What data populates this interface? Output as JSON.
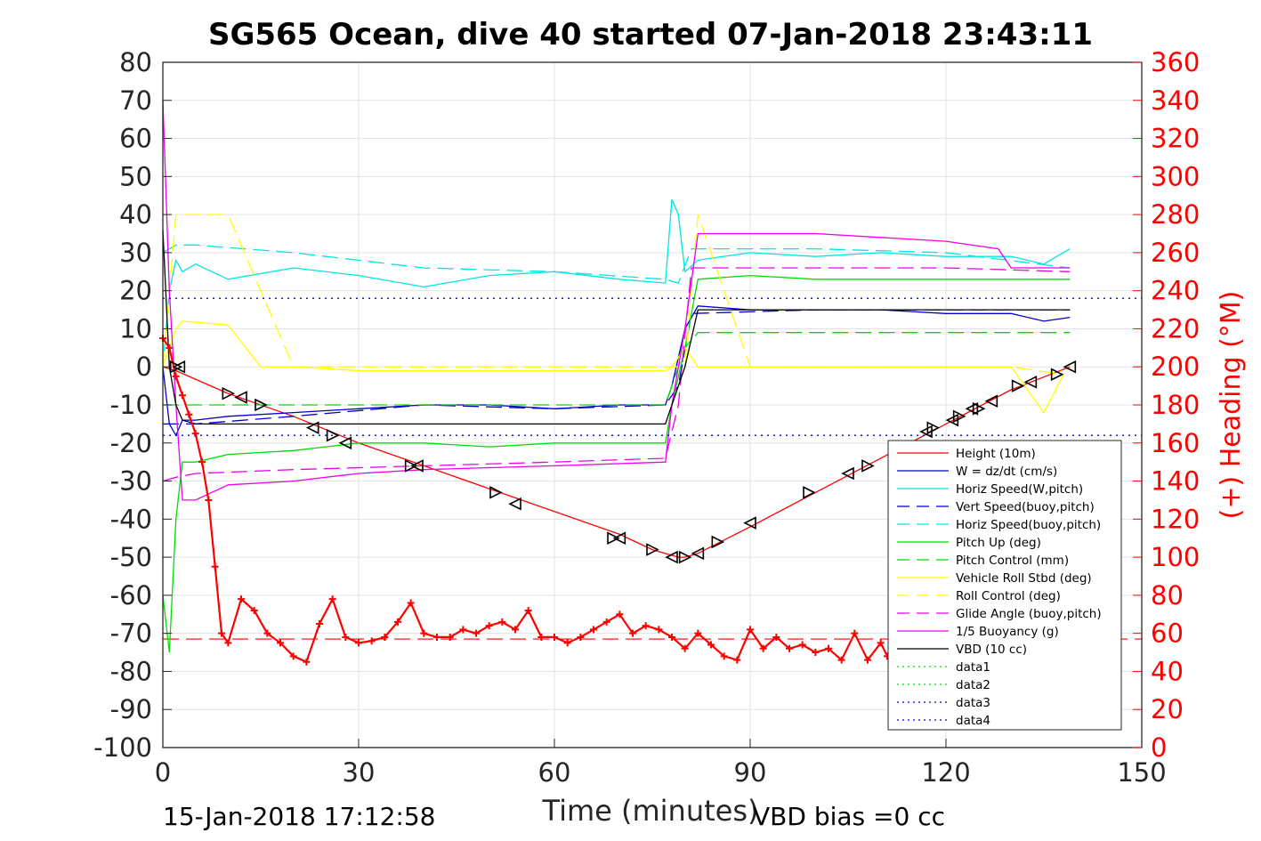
{
  "chart_data": {
    "type": "line",
    "title": "SG565 Ocean, dive 40 started 07-Jan-2018 23:43:11",
    "xlabel": "Time (minutes)",
    "ylabel": "",
    "ylabel_right": "(+) Heading (°M)",
    "xlim": [
      0,
      150
    ],
    "ylim": [
      -100,
      80
    ],
    "ylim_right": [
      0,
      360
    ],
    "x_ticks": [
      "0",
      "30",
      "60",
      "90",
      "120",
      "150"
    ],
    "y_ticks": [
      "80",
      "70",
      "60",
      "50",
      "40",
      "30",
      "20",
      "10",
      "0",
      "-10",
      "-20",
      "-30",
      "-40",
      "-50",
      "-60",
      "-70",
      "-80",
      "-90",
      "-100"
    ],
    "y_ticks_right": [
      "360",
      "340",
      "320",
      "300",
      "280",
      "260",
      "240",
      "220",
      "200",
      "180",
      "160",
      "140",
      "120",
      "100",
      "80",
      "60",
      "40",
      "20",
      "0"
    ],
    "grid": true,
    "legend_position": "bottom-right",
    "footer_left": "15-Jan-2018 17:12:58",
    "footer_right": "VBD bias =0 cc",
    "series": [
      {
        "name": "Height (10m)",
        "color": "#ff0000",
        "style": "solid",
        "x": [
          0,
          2,
          10,
          20,
          30,
          40,
          50,
          60,
          70,
          75,
          79,
          80,
          82,
          90,
          100,
          110,
          120,
          130,
          139
        ],
        "values": [
          0,
          -1,
          -7,
          -13,
          -20,
          -26,
          -32,
          -38,
          -44,
          -48,
          -50,
          -50,
          -49,
          -42,
          -33,
          -24,
          -15,
          -6,
          0
        ]
      },
      {
        "name": "W = dz/dt (cm/s)",
        "color": "#0000cc",
        "style": "solid",
        "x": [
          0,
          1,
          2,
          3,
          5,
          10,
          20,
          30,
          40,
          50,
          60,
          70,
          77,
          78,
          80,
          82,
          90,
          100,
          110,
          120,
          130,
          135,
          139
        ],
        "values": [
          0,
          -15,
          -18,
          -14,
          -14,
          -13,
          -12,
          -11,
          -10,
          -10,
          -11,
          -10,
          -10,
          -5,
          10,
          16,
          15,
          15,
          15,
          14,
          14,
          12,
          13
        ]
      },
      {
        "name": "Horiz Speed(W,pitch)",
        "color": "#00e5e5",
        "style": "solid",
        "x": [
          0,
          1,
          2,
          3,
          5,
          10,
          20,
          30,
          40,
          50,
          60,
          70,
          77,
          78,
          79,
          80,
          82,
          90,
          100,
          110,
          120,
          130,
          135,
          139
        ],
        "values": [
          0,
          20,
          28,
          25,
          27,
          23,
          26,
          24,
          21,
          24,
          25,
          23,
          22,
          44,
          40,
          25,
          28,
          30,
          29,
          30,
          29,
          29,
          27,
          31
        ]
      },
      {
        "name": "Vert Speed(buoy,pitch)",
        "color": "#0000cc",
        "style": "dashed",
        "x": [
          0,
          2,
          5,
          20,
          40,
          60,
          77,
          79,
          81,
          100,
          120,
          139
        ],
        "values": [
          -15,
          -15,
          -15,
          -13,
          -10,
          -11,
          -10,
          -5,
          14,
          15,
          15,
          15
        ]
      },
      {
        "name": "Horiz Speed(buoy,pitch)",
        "color": "#00e5e5",
        "style": "dashed",
        "x": [
          0,
          2,
          5,
          20,
          40,
          60,
          77,
          79,
          81,
          100,
          120,
          139
        ],
        "values": [
          30,
          32,
          32,
          30,
          26,
          25,
          23,
          22,
          31,
          31,
          30,
          26
        ]
      },
      {
        "name": "Pitch Up (deg)",
        "color": "#00dd00",
        "style": "solid",
        "x": [
          0,
          1,
          2,
          3,
          5,
          10,
          20,
          30,
          40,
          50,
          60,
          70,
          77,
          78,
          80,
          82,
          90,
          100,
          110,
          120,
          130,
          139
        ],
        "values": [
          -60,
          -75,
          -40,
          -25,
          -25,
          -23,
          -22,
          -20,
          -20,
          -21,
          -20,
          -20,
          -20,
          -10,
          5,
          23,
          24,
          23,
          23,
          23,
          23,
          23
        ]
      },
      {
        "name": "Pitch Control (mm)",
        "color": "#00dd00",
        "style": "dashed",
        "x": [
          0,
          2,
          5,
          77,
          78,
          80,
          82,
          139
        ],
        "values": [
          -10,
          -10,
          -10,
          -10,
          -5,
          5,
          9,
          9
        ]
      },
      {
        "name": "Vehicle Roll Stbd (deg)",
        "color": "#ffff00",
        "style": "solid",
        "x": [
          0,
          2,
          3,
          10,
          15,
          20,
          30,
          40,
          50,
          60,
          70,
          77,
          78,
          80,
          82,
          90,
          100,
          110,
          120,
          130,
          135,
          138
        ],
        "values": [
          0,
          10,
          12,
          11,
          0,
          0,
          -1,
          -1,
          -1,
          -1,
          -1,
          -1,
          0,
          5,
          0,
          0,
          0,
          0,
          0,
          0,
          -12,
          -2
        ]
      },
      {
        "name": "Roll Control (deg)",
        "color": "#ffff00",
        "style": "dashed",
        "x": [
          0,
          2,
          3,
          10,
          20,
          30,
          40,
          50,
          60,
          70,
          77,
          80,
          82,
          90,
          100,
          110,
          120,
          130,
          138
        ],
        "values": [
          0,
          40,
          40,
          40,
          0,
          0,
          0,
          0,
          0,
          0,
          0,
          0,
          40,
          0,
          0,
          0,
          0,
          0,
          -2
        ]
      },
      {
        "name": "Glide Angle (buoy,pitch)",
        "color": "#ee00ee",
        "style": "dashed",
        "x": [
          0,
          2,
          5,
          20,
          40,
          60,
          77,
          79,
          81,
          100,
          120,
          139
        ],
        "values": [
          -30,
          -29,
          -28,
          -27,
          -26,
          -25,
          -24,
          -10,
          26,
          26,
          26,
          25
        ]
      },
      {
        "name": "1/5 Buoyancy (g)",
        "color": "#ee00ee",
        "style": "solid",
        "x": [
          0,
          1,
          2,
          3,
          5,
          10,
          20,
          30,
          40,
          60,
          77,
          78,
          80,
          82,
          90,
          100,
          110,
          120,
          128,
          130,
          139
        ],
        "values": [
          70,
          20,
          -10,
          -35,
          -35,
          -31,
          -30,
          -28,
          -27,
          -26,
          -25,
          -10,
          10,
          35,
          35,
          35,
          34,
          33,
          31,
          26,
          26
        ]
      },
      {
        "name": "VBD (10 cc)",
        "color": "#000000",
        "style": "solid",
        "x": [
          0,
          1,
          2,
          3,
          5,
          77,
          78,
          80,
          82,
          139
        ],
        "values": [
          36,
          0,
          -10,
          -14,
          -15,
          -15,
          -10,
          0,
          15,
          15
        ]
      },
      {
        "name": "data1",
        "color": "#00dd00",
        "style": "dotted",
        "x": [],
        "values": []
      },
      {
        "name": "data2",
        "color": "#00dd00",
        "style": "dotted",
        "x": [],
        "values": []
      },
      {
        "name": "data3",
        "color": "#0000cc",
        "style": "dotted",
        "x": [
          0,
          150
        ],
        "values": [
          18,
          18
        ]
      },
      {
        "name": "data4",
        "color": "#0000cc",
        "style": "dotted",
        "x": [
          0,
          150
        ],
        "values": [
          -18,
          -18
        ]
      }
    ],
    "reference_lines": [
      {
        "axis": "y",
        "value": -71.5,
        "color": "#ff0000",
        "style": "dashed"
      }
    ],
    "heading_series": {
      "axis": "right",
      "color": "#ff0000",
      "marker": "+",
      "x": [
        0,
        1,
        2,
        3,
        4,
        5,
        6,
        7,
        8,
        9,
        10,
        12,
        14,
        16,
        18,
        20,
        22,
        24,
        26,
        28,
        30,
        32,
        34,
        36,
        38,
        40,
        42,
        44,
        46,
        48,
        50,
        52,
        54,
        56,
        58,
        60,
        62,
        64,
        66,
        68,
        70,
        72,
        74,
        76,
        78,
        80,
        82,
        84,
        86,
        88,
        90,
        92,
        94,
        96,
        98,
        100,
        102,
        104,
        106,
        108,
        110,
        111
      ],
      "values": [
        215,
        210,
        195,
        185,
        175,
        165,
        150,
        130,
        95,
        60,
        55,
        78,
        72,
        60,
        55,
        48,
        45,
        65,
        78,
        58,
        55,
        56,
        58,
        66,
        76,
        60,
        58,
        58,
        62,
        60,
        64,
        66,
        62,
        72,
        58,
        58,
        55,
        58,
        62,
        66,
        70,
        60,
        64,
        62,
        58,
        52,
        60,
        54,
        48,
        46,
        62,
        52,
        58,
        52,
        54,
        50,
        52,
        46,
        60,
        46,
        55,
        48
      ]
    },
    "markers": {
      "color": "#000000",
      "x": [
        2,
        2.5,
        10,
        12,
        15,
        23,
        26,
        28,
        38,
        39,
        51,
        54,
        69,
        70,
        75,
        78,
        80,
        82,
        85,
        90,
        99,
        105,
        108,
        117,
        118,
        121,
        122,
        124,
        125,
        127,
        131,
        133,
        137,
        139
      ],
      "values": [
        0,
        0,
        -7,
        -8,
        -10,
        -16,
        -18,
        -20,
        -26,
        -26,
        -33,
        -36,
        -45,
        -45,
        -48,
        -50,
        -50,
        -49,
        -46,
        -41,
        -33,
        -28,
        -26,
        -17,
        -16,
        -14,
        -13,
        -11,
        -11,
        -9,
        -5,
        -4,
        -2,
        0
      ]
    }
  }
}
